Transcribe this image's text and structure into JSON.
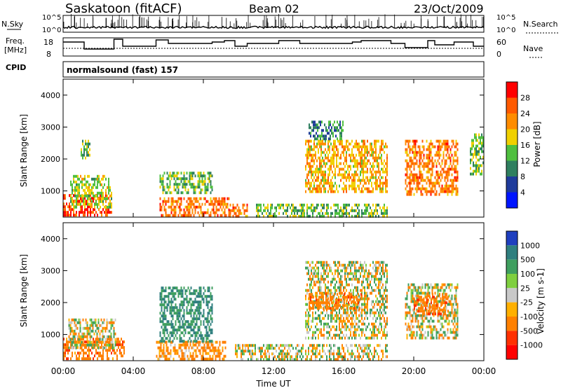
{
  "header": {
    "station": "Saskatoon (fitACF)",
    "beam": "Beam 02",
    "date": "23/Oct/2009",
    "cpid_label": "CPID",
    "cpid_value": "normalsound (fast) 157"
  },
  "noise_panel": {
    "left_label": "N.Sky",
    "right_label": "N.Search",
    "ticks_left": [
      "10^5",
      "10^0"
    ],
    "ticks_right": [
      "10^5",
      "10^0"
    ]
  },
  "freq_panel": {
    "left_label_line1": "Freq.",
    "left_label_line2": "[MHz]",
    "right_label": "Nave",
    "left_ticks": [
      "18",
      "8"
    ],
    "right_ticks": [
      "60",
      "0"
    ]
  },
  "power_panel": {
    "ylabel": "Slant Range [km]",
    "yticks": [
      "4000",
      "3000",
      "2000",
      "1000"
    ],
    "colorbar_label": "Power [dB]",
    "colorbar_ticks": [
      "28",
      "24",
      "20",
      "16",
      "12",
      "8",
      "4"
    ],
    "colors": [
      "#0015ff",
      "#1f3b9b",
      "#2f7f5f",
      "#4fbf3f",
      "#f0d000",
      "#ff8c00",
      "#ff5a00",
      "#ff0000"
    ]
  },
  "velocity_panel": {
    "ylabel": "Slant Range [km]",
    "yticks": [
      "4000",
      "3000",
      "2000",
      "1000"
    ],
    "colorbar_label": "Velocity [m s-1]",
    "colorbar_ticks": [
      "1000",
      "500",
      "100",
      "25",
      "-25",
      "-100",
      "-500",
      "-1000"
    ],
    "colors": [
      "#1f3fbf",
      "#2f7f7f",
      "#3f9f5f",
      "#7fcf3f",
      "#c8c8c8",
      "#ffb000",
      "#ff8000",
      "#ff3000",
      "#ff0000"
    ]
  },
  "xaxis": {
    "label": "Time UT",
    "ticks": [
      "00:00",
      "04:00",
      "08:00",
      "12:00",
      "16:00",
      "20:00",
      "00:00"
    ]
  },
  "chart_data": [
    {
      "type": "heatmap",
      "title": "Power",
      "xlabel": "Time UT",
      "ylabel": "Slant Range [km]",
      "xlim": [
        0,
        24
      ],
      "ylim": [
        180,
        4500
      ],
      "colorbar": {
        "label": "Power [dB]",
        "range": [
          0,
          32
        ],
        "ticks": [
          4,
          8,
          12,
          16,
          20,
          24,
          28
        ]
      },
      "blobs": [
        {
          "t0": 0.0,
          "t1": 2.8,
          "r0": 200,
          "r1": 900,
          "v": 28
        },
        {
          "t0": 0.4,
          "t1": 2.8,
          "r0": 500,
          "r1": 1500,
          "v": 16
        },
        {
          "t0": 1.0,
          "t1": 1.5,
          "r0": 2000,
          "r1": 2600,
          "v": 14
        },
        {
          "t0": 5.5,
          "t1": 9.5,
          "r0": 250,
          "r1": 800,
          "v": 24
        },
        {
          "t0": 5.5,
          "t1": 8.5,
          "r0": 900,
          "r1": 1600,
          "v": 14
        },
        {
          "t0": 9.5,
          "t1": 10.5,
          "r0": 200,
          "r1": 600,
          "v": 24
        },
        {
          "t0": 11.0,
          "t1": 18.5,
          "r0": 200,
          "r1": 600,
          "v": 14
        },
        {
          "t0": 13.8,
          "t1": 18.5,
          "r0": 1000,
          "r1": 2600,
          "v": 20
        },
        {
          "t0": 14.0,
          "t1": 16.0,
          "r0": 2600,
          "r1": 3200,
          "v": 10
        },
        {
          "t0": 19.5,
          "t1": 22.5,
          "r0": 900,
          "r1": 2600,
          "v": 24
        },
        {
          "t0": 23.2,
          "t1": 24.0,
          "r0": 1500,
          "r1": 2800,
          "v": 14
        }
      ]
    },
    {
      "type": "heatmap",
      "title": "Velocity",
      "xlabel": "Time UT",
      "ylabel": "Slant Range [km]",
      "xlim": [
        0,
        24
      ],
      "ylim": [
        180,
        4500
      ],
      "colorbar": {
        "label": "Velocity [m s-1]",
        "ticks": [
          1000,
          500,
          100,
          25,
          -25,
          -100,
          -500,
          -1000
        ]
      },
      "blobs": [
        {
          "t0": 0.0,
          "t1": 3.5,
          "r0": 200,
          "r1": 900,
          "v": -200
        },
        {
          "t0": 0.3,
          "t1": 3.0,
          "r0": 600,
          "r1": 1500,
          "v": 0
        },
        {
          "t0": 5.3,
          "t1": 9.3,
          "r0": 250,
          "r1": 800,
          "v": -150
        },
        {
          "t0": 5.5,
          "t1": 8.5,
          "r0": 800,
          "r1": 2500,
          "v": 300
        },
        {
          "t0": 9.8,
          "t1": 18.5,
          "r0": 200,
          "r1": 700,
          "v": 0
        },
        {
          "t0": 13.8,
          "t1": 18.5,
          "r0": 900,
          "r1": 3300,
          "v": 0
        },
        {
          "t0": 14.0,
          "t1": 17.0,
          "r0": 1800,
          "r1": 2300,
          "v": -200
        },
        {
          "t0": 19.5,
          "t1": 22.5,
          "r0": 900,
          "r1": 2600,
          "v": 0
        },
        {
          "t0": 20.0,
          "t1": 22.0,
          "r0": 1600,
          "r1": 2300,
          "v": -250
        }
      ]
    }
  ]
}
